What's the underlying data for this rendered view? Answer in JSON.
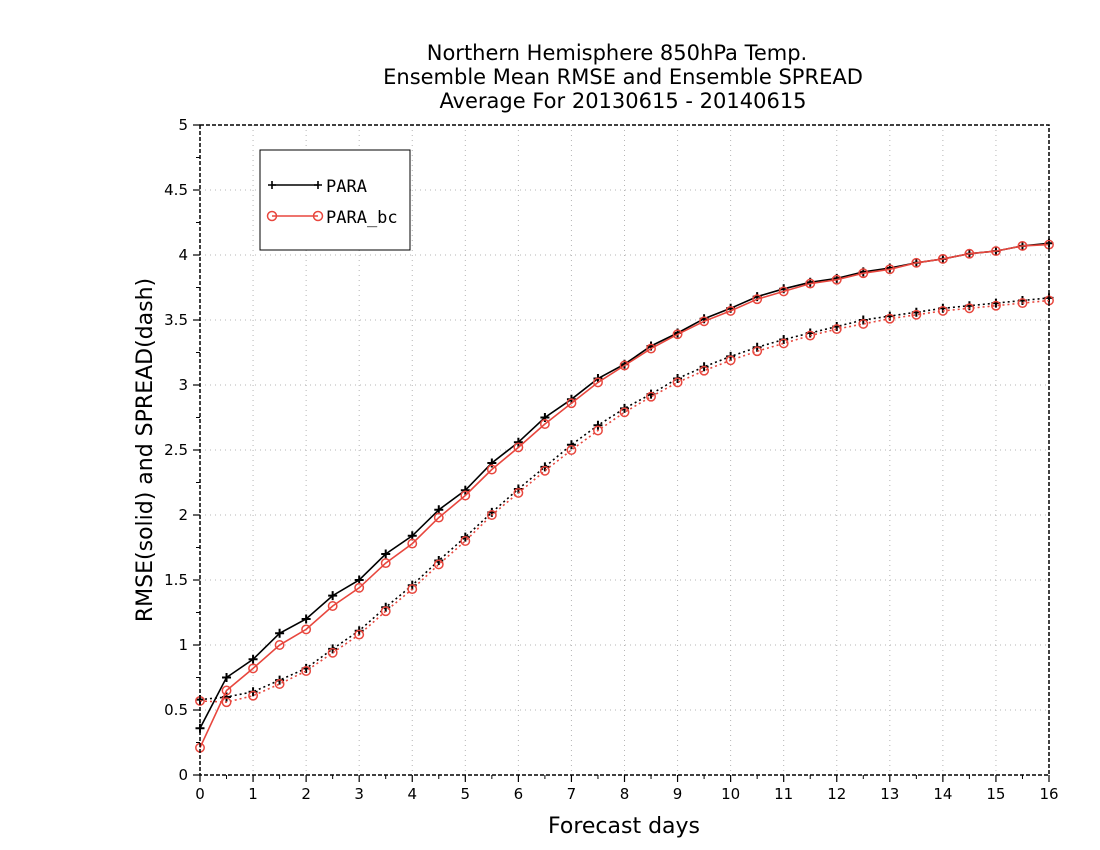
{
  "chart_data": {
    "type": "line",
    "title_lines": [
      "Northern Hemisphere 850hPa Temp.",
      "Ensemble Mean RMSE and Ensemble SPREAD",
      "Average For 20130615 - 20140615"
    ],
    "xlabel": "Forecast days",
    "ylabel": "RMSE(solid) and SPREAD(dash)",
    "xlim": [
      0,
      16
    ],
    "ylim": [
      0,
      5
    ],
    "x_ticks": [
      "0",
      "1",
      "2",
      "3",
      "4",
      "5",
      "6",
      "7",
      "8",
      "9",
      "10",
      "11",
      "12",
      "13",
      "14",
      "15",
      "16"
    ],
    "y_ticks": [
      "0",
      "0.5",
      "1",
      "1.5",
      "2",
      "2.5",
      "3",
      "3.5",
      "4",
      "4.5",
      "5"
    ],
    "grid": true,
    "legend_placement": "top-left",
    "x": [
      0,
      0.5,
      1,
      1.5,
      2,
      2.5,
      3,
      3.5,
      4,
      4.5,
      5,
      5.5,
      6,
      6.5,
      7,
      7.5,
      8,
      8.5,
      9,
      9.5,
      10,
      10.5,
      11,
      11.5,
      12,
      12.5,
      13,
      13.5,
      14,
      14.5,
      15,
      15.5,
      16
    ],
    "series": [
      {
        "name": "PARA",
        "color": "#000000",
        "marker": "plus",
        "rmse": [
          0.36,
          0.75,
          0.89,
          1.09,
          1.2,
          1.38,
          1.5,
          1.7,
          1.84,
          2.04,
          2.19,
          2.4,
          2.56,
          2.75,
          2.89,
          3.05,
          3.16,
          3.3,
          3.4,
          3.51,
          3.59,
          3.68,
          3.74,
          3.79,
          3.82,
          3.87,
          3.9,
          3.94,
          3.97,
          4.01,
          4.03,
          4.07,
          4.09
        ],
        "spread": [
          0.58,
          0.6,
          0.64,
          0.73,
          0.82,
          0.97,
          1.11,
          1.29,
          1.46,
          1.65,
          1.83,
          2.02,
          2.2,
          2.37,
          2.54,
          2.69,
          2.82,
          2.93,
          3.05,
          3.14,
          3.22,
          3.29,
          3.35,
          3.4,
          3.45,
          3.5,
          3.53,
          3.56,
          3.59,
          3.61,
          3.63,
          3.65,
          3.67
        ]
      },
      {
        "name": "PARA_bc",
        "color": "#e8473e",
        "marker": "circle",
        "rmse": [
          0.21,
          0.65,
          0.82,
          1.0,
          1.12,
          1.3,
          1.44,
          1.63,
          1.78,
          1.98,
          2.15,
          2.35,
          2.52,
          2.7,
          2.86,
          3.02,
          3.15,
          3.28,
          3.39,
          3.49,
          3.57,
          3.66,
          3.72,
          3.78,
          3.81,
          3.86,
          3.89,
          3.94,
          3.97,
          4.01,
          4.03,
          4.07,
          4.08
        ],
        "spread": [
          0.57,
          0.56,
          0.61,
          0.7,
          0.8,
          0.94,
          1.08,
          1.26,
          1.43,
          1.62,
          1.8,
          2.0,
          2.17,
          2.34,
          2.5,
          2.65,
          2.79,
          2.91,
          3.02,
          3.11,
          3.19,
          3.26,
          3.32,
          3.38,
          3.43,
          3.47,
          3.51,
          3.54,
          3.57,
          3.59,
          3.61,
          3.63,
          3.65
        ]
      }
    ]
  }
}
